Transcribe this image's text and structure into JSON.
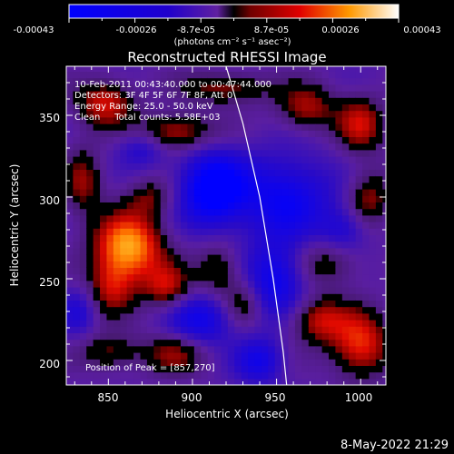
{
  "chart_data": {
    "type": "heatmap",
    "title": "Reconstructed RHESSI Image",
    "xlabel": "Heliocentric X (arcsec)",
    "ylabel": "Heliocentric Y (arcsec)",
    "xlim": [
      825,
      1015
    ],
    "ylim": [
      185,
      380
    ],
    "xticks": [
      850,
      900,
      950,
      1000
    ],
    "yticks": [
      200,
      250,
      300,
      350
    ],
    "colorbar": {
      "ticks": [
        "-0.00043",
        "-0.00026",
        "-8.7e-05",
        "8.7e-05",
        "0.00026",
        "0.00043"
      ],
      "range": [
        -0.00043,
        0.00043
      ],
      "unit_label": "(photons cm⁻² s⁻¹ asec⁻²)"
    },
    "info_lines": [
      "10-Feb-2011 00:43:40.000 to 00:47:44.000",
      "Detectors: 3F 4F 5F 6F 7F 8F, Att 0",
      "Energy Range: 25.0 - 50.0 keV",
      "Clean     Total counts: 5.58E+03"
    ],
    "peak_label": "Position of Peak = [857,270]",
    "peak": [
      857,
      270
    ],
    "limb_curve": [
      [
        920,
        380
      ],
      [
        930,
        345
      ],
      [
        940,
        300
      ],
      [
        948,
        250
      ],
      [
        954,
        205
      ],
      [
        956,
        185
      ]
    ],
    "blobs": [
      {
        "x": 862,
        "y": 270,
        "amp": 1.0,
        "sx": 14,
        "sy": 14
      },
      {
        "x": 885,
        "y": 245,
        "amp": 0.55,
        "sx": 10,
        "sy": 10
      },
      {
        "x": 852,
        "y": 245,
        "amp": 0.5,
        "sx": 10,
        "sy": 12
      },
      {
        "x": 848,
        "y": 358,
        "amp": 0.6,
        "sx": 12,
        "sy": 10
      },
      {
        "x": 890,
        "y": 340,
        "amp": 0.55,
        "sx": 16,
        "sy": 8
      },
      {
        "x": 920,
        "y": 367,
        "amp": 0.45,
        "sx": 18,
        "sy": 7
      },
      {
        "x": 968,
        "y": 355,
        "amp": 0.5,
        "sx": 12,
        "sy": 10
      },
      {
        "x": 1000,
        "y": 345,
        "amp": 0.55,
        "sx": 10,
        "sy": 12
      },
      {
        "x": 1005,
        "y": 300,
        "amp": 0.45,
        "sx": 9,
        "sy": 12
      },
      {
        "x": 980,
        "y": 260,
        "amp": 0.35,
        "sx": 14,
        "sy": 10
      },
      {
        "x": 1000,
        "y": 210,
        "amp": 0.7,
        "sx": 12,
        "sy": 14
      },
      {
        "x": 975,
        "y": 225,
        "amp": 0.55,
        "sx": 12,
        "sy": 10
      },
      {
        "x": 915,
        "y": 255,
        "amp": 0.4,
        "sx": 9,
        "sy": 12
      },
      {
        "x": 930,
        "y": 235,
        "amp": 0.35,
        "sx": 8,
        "sy": 10
      },
      {
        "x": 890,
        "y": 205,
        "amp": 0.45,
        "sx": 14,
        "sy": 9
      },
      {
        "x": 850,
        "y": 205,
        "amp": 0.4,
        "sx": 12,
        "sy": 8
      },
      {
        "x": 835,
        "y": 310,
        "amp": 0.45,
        "sx": 8,
        "sy": 14
      },
      {
        "x": 875,
        "y": 300,
        "amp": 0.35,
        "sx": 10,
        "sy": 8
      },
      {
        "x": 912,
        "y": 305,
        "amp": -0.85,
        "sx": 14,
        "sy": 16
      },
      {
        "x": 955,
        "y": 300,
        "amp": -0.6,
        "sx": 20,
        "sy": 18
      },
      {
        "x": 950,
        "y": 250,
        "amp": -0.6,
        "sx": 12,
        "sy": 16
      },
      {
        "x": 905,
        "y": 225,
        "amp": -0.55,
        "sx": 14,
        "sy": 12
      },
      {
        "x": 940,
        "y": 200,
        "amp": -0.5,
        "sx": 10,
        "sy": 10
      },
      {
        "x": 990,
        "y": 280,
        "amp": -0.35,
        "sx": 10,
        "sy": 10
      },
      {
        "x": 870,
        "y": 330,
        "amp": -0.35,
        "sx": 10,
        "sy": 8
      },
      {
        "x": 832,
        "y": 230,
        "amp": -0.35,
        "sx": 8,
        "sy": 10
      }
    ]
  },
  "footer": {
    "timestamp": "8-May-2022 21:29"
  }
}
